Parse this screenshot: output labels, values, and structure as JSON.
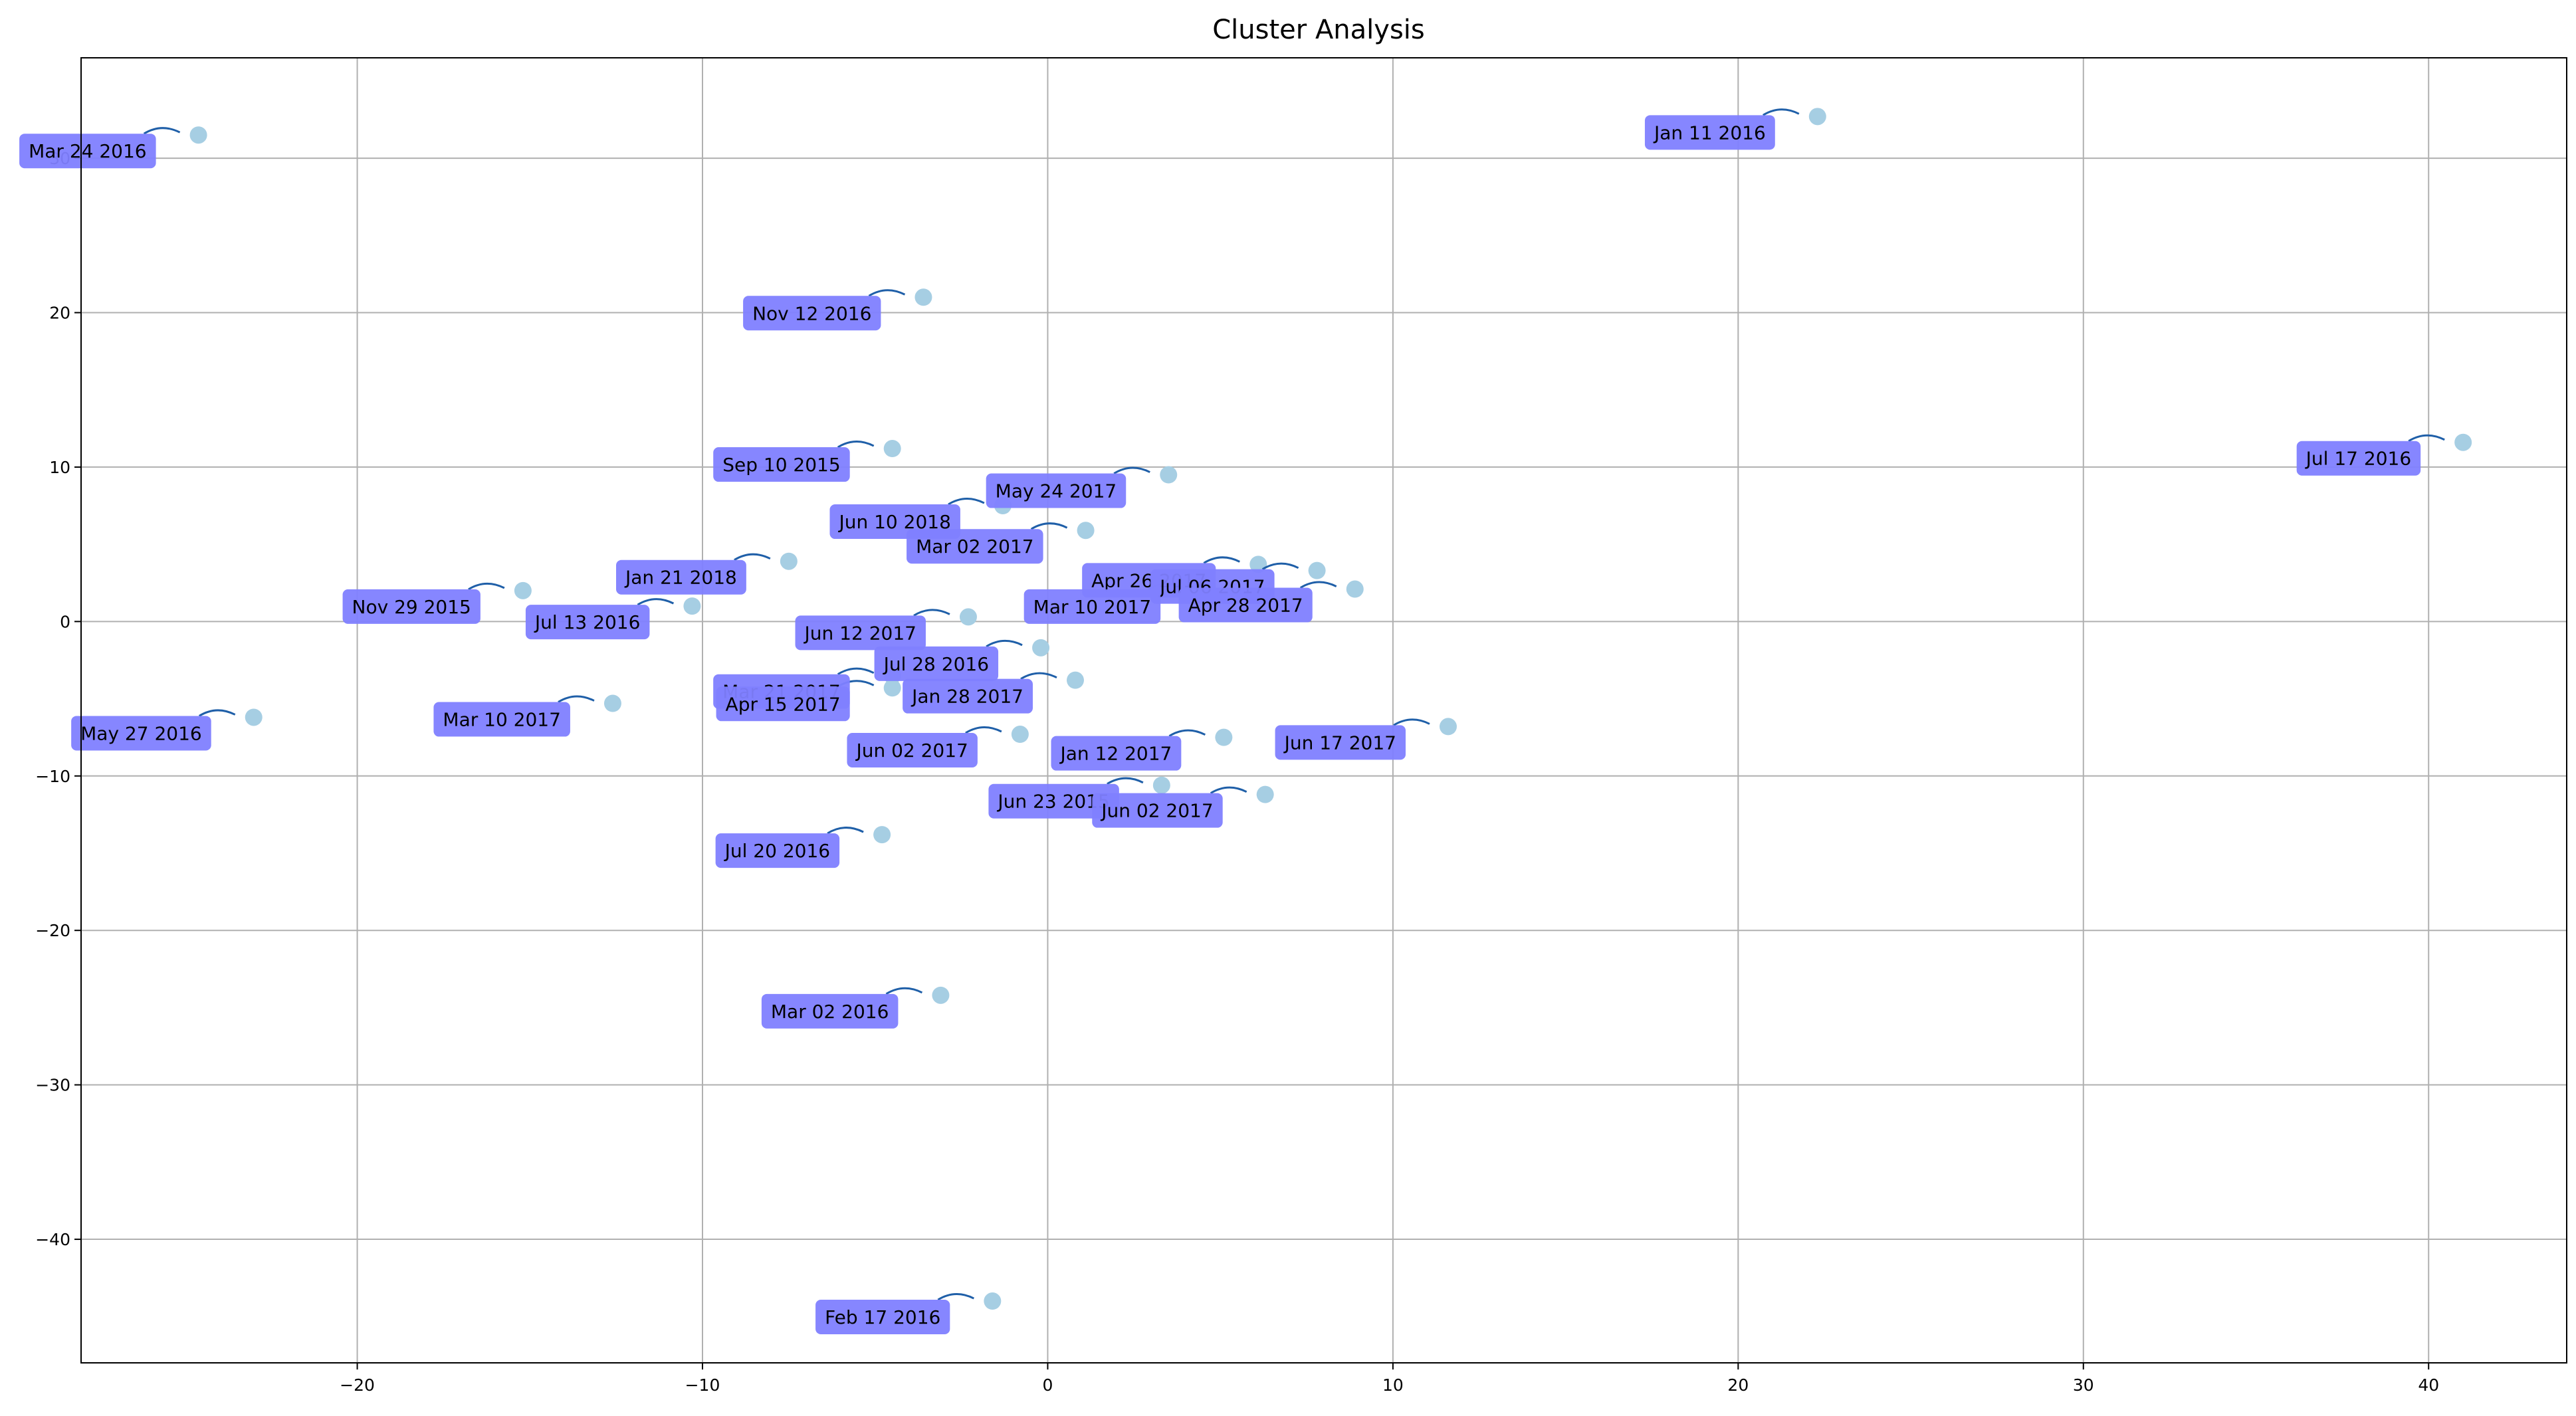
{
  "chart_data": {
    "type": "scatter",
    "title": "Cluster Analysis",
    "xlabel": "",
    "ylabel": "",
    "xlim": [
      -28,
      44
    ],
    "ylim": [
      -48,
      36.5
    ],
    "xticks": [
      -20,
      -10,
      0,
      10,
      20,
      30,
      40
    ],
    "yticks": [
      -40,
      -30,
      -20,
      -10,
      0,
      10,
      20,
      30
    ],
    "xtick_labels": [
      "−20",
      "−10",
      "0",
      "10",
      "20",
      "30",
      "40"
    ],
    "ytick_labels": [
      "−40",
      "−30",
      "−20",
      "−10",
      "0",
      "10",
      "20",
      "30"
    ],
    "grid": true,
    "colors": {
      "point": "#a6cee3",
      "label_box": "#7f7fff",
      "arrow": "#1f5fa8",
      "grid": "#b0b0b0"
    },
    "points": [
      {
        "x": -24.6,
        "y": 31.5,
        "label": "Mar 24 2016"
      },
      {
        "x": 22.3,
        "y": 32.7,
        "label": "Jan 11 2016"
      },
      {
        "x": -3.6,
        "y": 21.0,
        "label": "Nov 12 2016"
      },
      {
        "x": -4.5,
        "y": 11.2,
        "label": "Sep 10 2015"
      },
      {
        "x": 41.0,
        "y": 11.6,
        "label": "Jul 17 2016"
      },
      {
        "x": 3.5,
        "y": 9.5,
        "label": "May 24 2017"
      },
      {
        "x": -1.3,
        "y": 7.5,
        "label": "Jun 10 2018"
      },
      {
        "x": 1.1,
        "y": 5.9,
        "label": "Mar 02 2017"
      },
      {
        "x": -7.5,
        "y": 3.9,
        "label": "Jan 21 2018"
      },
      {
        "x": 6.1,
        "y": 3.7,
        "label": "Apr 26 2017"
      },
      {
        "x": 7.8,
        "y": 3.3,
        "label": "Jul 06 2017"
      },
      {
        "x": 4.5,
        "y": 2.0,
        "label": "Mar 10 2017"
      },
      {
        "x": 8.9,
        "y": 2.1,
        "label": "Apr 28 2017"
      },
      {
        "x": -15.2,
        "y": 2.0,
        "label": "Nov 29 2015"
      },
      {
        "x": -10.3,
        "y": 1.0,
        "label": "Jul 13 2016"
      },
      {
        "x": -2.3,
        "y": 0.3,
        "label": "Jun 12 2017"
      },
      {
        "x": -0.2,
        "y": -1.7,
        "label": "Jul 28 2016"
      },
      {
        "x": -4.5,
        "y": -3.5,
        "label": "Mar 21 2017"
      },
      {
        "x": 0.8,
        "y": -3.8,
        "label": "Jan 28 2017"
      },
      {
        "x": -4.5,
        "y": -4.3,
        "label": "Apr 15 2017"
      },
      {
        "x": -12.6,
        "y": -5.3,
        "label": "Mar 10 2017"
      },
      {
        "x": -23.0,
        "y": -6.2,
        "label": "May 27 2016"
      },
      {
        "x": -0.8,
        "y": -7.3,
        "label": "Jun 02 2017"
      },
      {
        "x": 5.1,
        "y": -7.5,
        "label": "Jan 12 2017"
      },
      {
        "x": 11.6,
        "y": -6.8,
        "label": "Jun 17 2017"
      },
      {
        "x": 3.3,
        "y": -10.6,
        "label": "Jun 23 2015"
      },
      {
        "x": 6.3,
        "y": -11.2,
        "label": "Jun 02 2017"
      },
      {
        "x": -4.8,
        "y": -13.8,
        "label": "Jul 20 2016"
      },
      {
        "x": -3.1,
        "y": -24.2,
        "label": "Mar 02 2016"
      },
      {
        "x": -1.6,
        "y": -44.0,
        "label": "Feb 17 2016"
      }
    ]
  }
}
